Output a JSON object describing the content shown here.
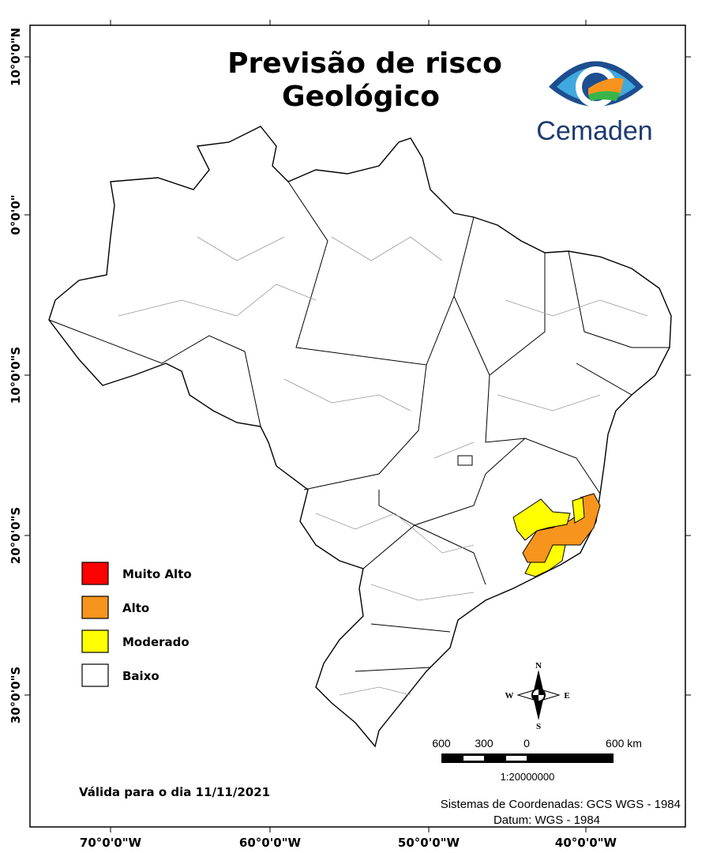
{
  "title_lines": [
    "Previsão de risco",
    "Geológico"
  ],
  "logo": {
    "text": "Cemaden"
  },
  "legend": [
    {
      "label": "Muito Alto",
      "color": "#ff0000"
    },
    {
      "label": "Alto",
      "color": "#f7941d"
    },
    {
      "label": "Moderado",
      "color": "#ffff00"
    },
    {
      "label": "Baixo",
      "color": "#ffffff"
    }
  ],
  "validity": "Válida para o dia 11/11/2021",
  "coordinate_system": "Sistemas de Coordenadas: GCS WGS - 1984",
  "datum": "Datum: WGS - 1984",
  "scale": {
    "labels": [
      "600",
      "300",
      "0",
      "600 km"
    ],
    "ratio": "1:20000000"
  },
  "compass": {
    "north": "N",
    "south": "S",
    "east": "E",
    "west": "W"
  },
  "axes": {
    "x_labels": [
      "70°0'0\"W",
      "60°0'0\"W",
      "50°0'0\"W",
      "40°0'0\"W"
    ],
    "y_labels": [
      "10°0'0\"N",
      "0°0'0\"",
      "10°0'0\"S",
      "20°0'0\"S",
      "30°0'0\"S"
    ]
  }
}
